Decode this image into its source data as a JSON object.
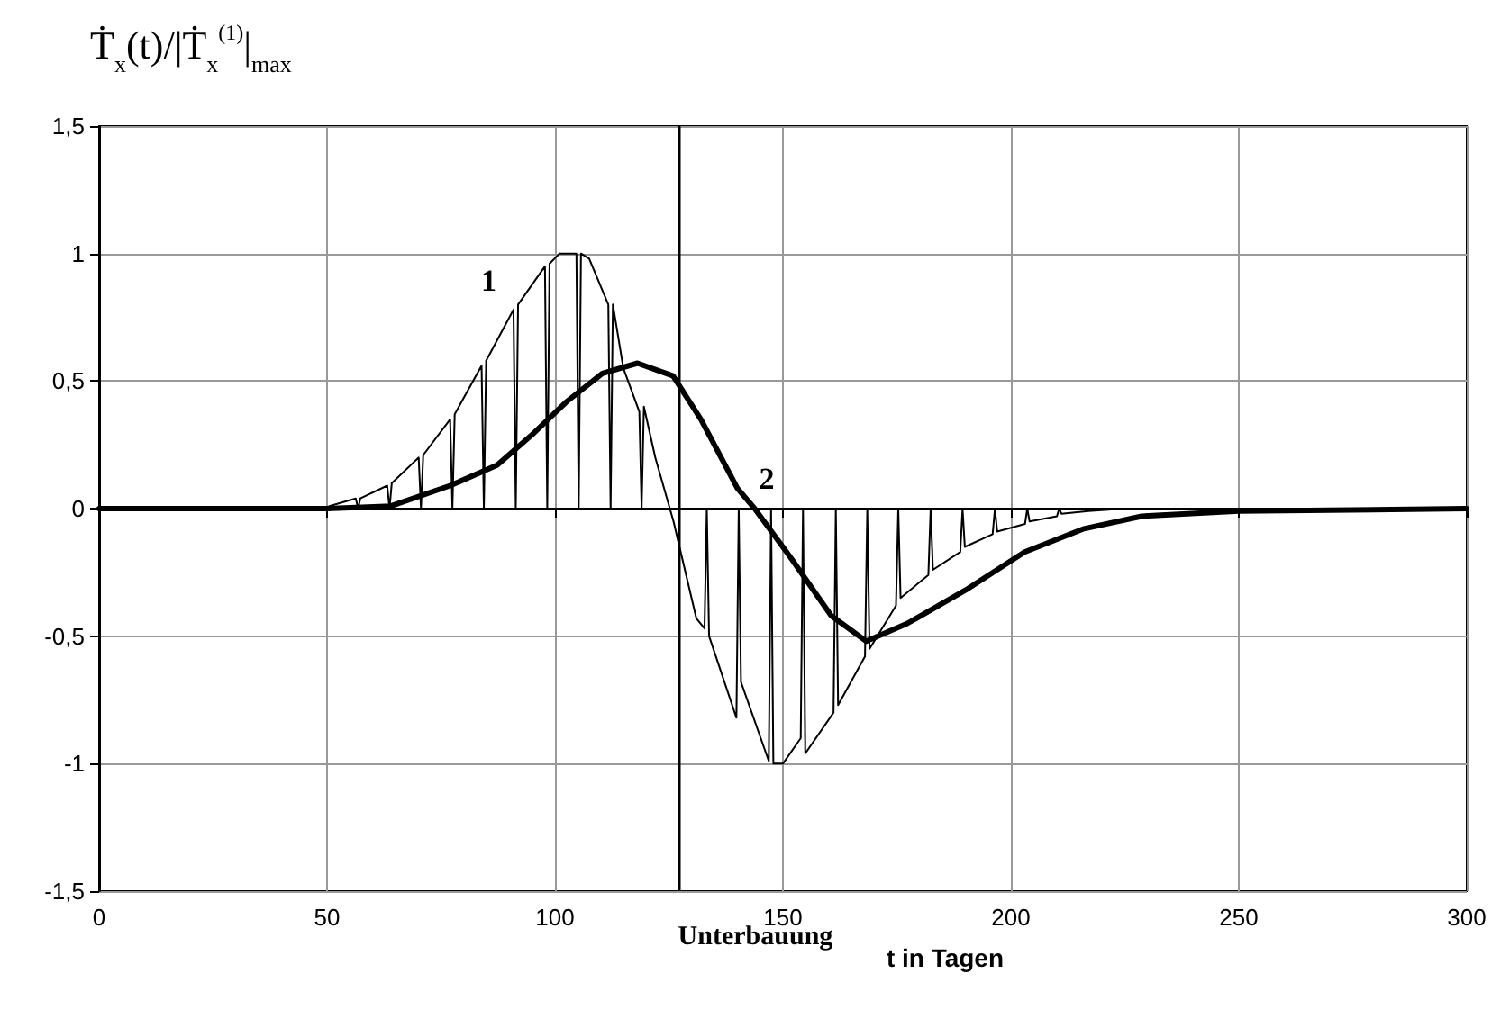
{
  "chart_data": {
    "type": "line",
    "ylabel": "Ṫ$_{x}$(t)/|Ṫ$_{x}$$^{(1)}$|$_{max}$",
    "xlabel": "t in Tagen",
    "xlim": [
      0,
      300
    ],
    "xticks": [
      0,
      50,
      100,
      150,
      200,
      250,
      300
    ],
    "ylim": [
      -1.5,
      1.5
    ],
    "yticks": [
      {
        "value": -1.5,
        "label": "-1,5"
      },
      -1,
      {
        "value": -0.5,
        "label": "-0,5"
      },
      0,
      {
        "value": 0.5,
        "label": "0,5"
      },
      1,
      {
        "value": 1.5,
        "label": "1,5"
      }
    ],
    "grid": true,
    "legend": false,
    "marker": "none",
    "series": [
      {
        "name": "1",
        "color": "#000000",
        "x": [
          0,
          45,
          50,
          50.5,
          56.3,
          56.8,
          57.3,
          63.2,
          63.7,
          64.2,
          70.1,
          70.6,
          71.1,
          77,
          77.5,
          78,
          83.9,
          84.4,
          84.9,
          90.9,
          91.4,
          91.9,
          97.8,
          98.3,
          98.8,
          101,
          104.7,
          105.2,
          105.7,
          107.5,
          111.7,
          112.2,
          112.7,
          115,
          118.5,
          119,
          119.5,
          122,
          126,
          131,
          132.8,
          133.3,
          133.8,
          139.8,
          140.3,
          140.8,
          146.9,
          147.4,
          147.9,
          150,
          153.9,
          154.4,
          154.9,
          161.1,
          161.6,
          162.1,
          168,
          168.5,
          169,
          174.8,
          175.3,
          175.8,
          181.9,
          182.4,
          182.9,
          188.9,
          189.4,
          189.9,
          196,
          196.5,
          197,
          203.1,
          203.6,
          204.1,
          210.1,
          210.6,
          211.1,
          217,
          225,
          300
        ],
        "values": [
          0,
          0,
          0,
          0.01,
          0.04,
          0,
          0.04,
          0.09,
          0,
          0.1,
          0.2,
          0,
          0.21,
          0.35,
          0,
          0.37,
          0.56,
          0,
          0.58,
          0.78,
          0,
          0.8,
          0.95,
          0,
          0.96,
          1,
          1,
          0,
          1,
          0.98,
          0.8,
          0,
          0.8,
          0.55,
          0.38,
          0,
          0.4,
          0.2,
          -0.05,
          -0.43,
          -0.47,
          0,
          -0.5,
          -0.82,
          0,
          -0.68,
          -0.99,
          0,
          -1,
          -1,
          -0.9,
          0,
          -0.96,
          -0.8,
          0,
          -0.77,
          -0.58,
          0,
          -0.55,
          -0.38,
          0,
          -0.35,
          -0.26,
          0,
          -0.24,
          -0.17,
          0,
          -0.15,
          -0.1,
          0,
          -0.09,
          -0.06,
          0,
          -0.05,
          -0.03,
          0,
          -0.02,
          -0.01,
          0,
          0
        ]
      },
      {
        "name": "2",
        "color": "#000000",
        "x": [
          0,
          50,
          64,
          77,
          87.3,
          95,
          102.6,
          110.4,
          118.1,
          125.9,
          132,
          140,
          143.8,
          151.6,
          160.6,
          168.3,
          177.3,
          190,
          203,
          215.8,
          228.7,
          250,
          300
        ],
        "values": [
          0,
          0,
          0.01,
          0.09,
          0.17,
          0.29,
          0.42,
          0.53,
          0.57,
          0.52,
          0.35,
          0.08,
          0,
          -0.19,
          -0.42,
          -0.52,
          -0.45,
          -0.32,
          -0.17,
          -0.08,
          -0.03,
          -0.01,
          0
        ]
      }
    ],
    "ref_lines": [
      {
        "axis": "x",
        "value": 127,
        "label": "Unterbauung",
        "color": "#000000"
      }
    ]
  }
}
